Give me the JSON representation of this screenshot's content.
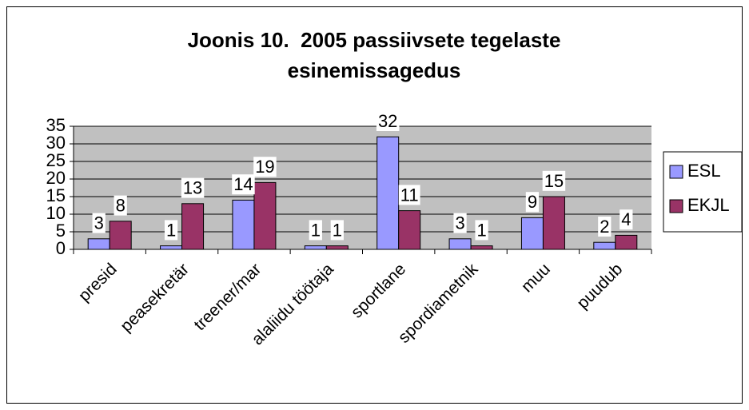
{
  "chart_data": {
    "type": "bar",
    "title": [
      "Joonis 10.  2005 passiivsete tegelaste",
      "esinemissagedus"
    ],
    "categories": [
      "presid",
      "peasekretär",
      "treener/mar",
      "alaliidu töötaja",
      "sportlane",
      "spordiametnik",
      "muu",
      "puudub"
    ],
    "series": [
      {
        "name": "ESL",
        "color": "#9999ff",
        "values": [
          3,
          1,
          14,
          1,
          32,
          3,
          9,
          2
        ]
      },
      {
        "name": "EKJL",
        "color": "#993366",
        "values": [
          8,
          13,
          19,
          1,
          11,
          1,
          15,
          4
        ]
      }
    ],
    "ylim": [
      0,
      35
    ],
    "yticks": [
      0,
      5,
      10,
      15,
      20,
      25,
      30,
      35
    ],
    "grid": true,
    "legend": "right"
  }
}
